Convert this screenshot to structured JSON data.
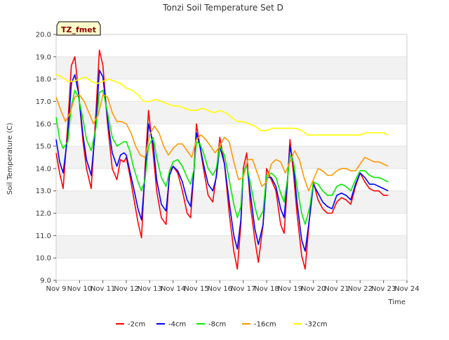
{
  "chart_data": {
    "type": "line",
    "title": "Tonzi Soil Temperature Set D",
    "xlabel": "Time",
    "ylabel": "Soil Temperature (C)",
    "ylim": [
      9.0,
      20.0
    ],
    "yticks": [
      "9.0",
      "10.0",
      "11.0",
      "12.0",
      "13.0",
      "14.0",
      "15.0",
      "16.0",
      "17.0",
      "18.0",
      "19.0",
      "20.0"
    ],
    "xlim": [
      9,
      24
    ],
    "xticks": [
      "Nov 9",
      "Nov 10",
      "Nov 11",
      "Nov 12",
      "Nov 13",
      "Nov 14",
      "Nov 15",
      "Nov 16",
      "Nov 17",
      "Nov 18",
      "Nov 19",
      "Nov 20",
      "Nov 21",
      "Nov 22",
      "Nov 23",
      "Nov 24"
    ],
    "badge": "TZ_fmet",
    "legend_position": "bottom-center",
    "background_bands": true,
    "series": [
      {
        "name": "-2cm",
        "color": "#ff0000",
        "x": [
          9.0,
          9.15,
          9.3,
          9.5,
          9.65,
          9.8,
          9.95,
          10.15,
          10.3,
          10.5,
          10.7,
          10.85,
          11.0,
          11.2,
          11.4,
          11.6,
          11.75,
          11.9,
          12.0,
          12.15,
          12.3,
          12.5,
          12.65,
          12.8,
          12.95,
          13.15,
          13.3,
          13.5,
          13.7,
          13.85,
          14.0,
          14.2,
          14.4,
          14.6,
          14.75,
          14.9,
          15.0,
          15.15,
          15.3,
          15.5,
          15.7,
          15.85,
          16.0,
          16.2,
          16.4,
          16.6,
          16.75,
          16.9,
          17.0,
          17.15,
          17.3,
          17.5,
          17.65,
          17.85,
          18.0,
          18.2,
          18.4,
          18.6,
          18.75,
          18.9,
          19.0,
          19.15,
          19.3,
          19.5,
          19.65,
          19.85,
          20.0,
          20.2,
          20.4,
          20.6,
          20.8,
          21.0,
          21.2,
          21.4,
          21.6,
          21.8,
          22.0,
          22.2,
          22.4,
          22.6,
          22.8,
          23.0,
          23.2
        ],
        "y": [
          14.7,
          13.8,
          13.1,
          16.0,
          18.6,
          19.0,
          17.5,
          15.2,
          14.0,
          13.1,
          16.5,
          19.3,
          18.6,
          16.0,
          14.0,
          13.5,
          14.4,
          14.3,
          14.5,
          13.7,
          12.8,
          11.6,
          10.9,
          14.0,
          16.6,
          14.7,
          13.0,
          11.8,
          11.5,
          13.9,
          14.1,
          13.8,
          13.0,
          12.0,
          11.8,
          14.0,
          16.0,
          15.0,
          14.0,
          12.8,
          12.5,
          13.7,
          15.4,
          14.2,
          12.0,
          10.3,
          9.5,
          11.5,
          14.0,
          14.7,
          12.4,
          10.8,
          9.8,
          11.5,
          14.0,
          13.5,
          13.0,
          11.5,
          11.1,
          13.5,
          15.3,
          13.8,
          12.0,
          10.1,
          9.5,
          12.0,
          13.4,
          12.6,
          12.2,
          12.0,
          12.0,
          12.5,
          12.7,
          12.6,
          12.4,
          13.2,
          13.8,
          13.4,
          13.1,
          13.0,
          13.0,
          12.8,
          12.8
        ]
      },
      {
        "name": "-4cm",
        "color": "#0000ff",
        "x": [
          9.0,
          9.15,
          9.3,
          9.5,
          9.65,
          9.8,
          9.95,
          10.15,
          10.3,
          10.5,
          10.7,
          10.85,
          11.0,
          11.2,
          11.4,
          11.6,
          11.75,
          11.9,
          12.0,
          12.15,
          12.3,
          12.5,
          12.65,
          12.8,
          12.95,
          13.15,
          13.3,
          13.5,
          13.7,
          13.85,
          14.0,
          14.2,
          14.4,
          14.6,
          14.75,
          14.9,
          15.0,
          15.15,
          15.3,
          15.5,
          15.7,
          15.85,
          16.0,
          16.2,
          16.4,
          16.6,
          16.75,
          16.9,
          17.0,
          17.15,
          17.3,
          17.5,
          17.65,
          17.85,
          18.0,
          18.2,
          18.4,
          18.6,
          18.75,
          18.9,
          19.0,
          19.15,
          19.3,
          19.5,
          19.65,
          19.85,
          20.0,
          20.2,
          20.4,
          20.6,
          20.8,
          21.0,
          21.2,
          21.4,
          21.6,
          21.8,
          22.0,
          22.2,
          22.4,
          22.6,
          22.8,
          23.0,
          23.2
        ],
        "y": [
          15.3,
          14.3,
          13.8,
          15.5,
          17.8,
          18.2,
          17.4,
          15.5,
          14.4,
          13.7,
          16.0,
          18.4,
          18.1,
          16.2,
          14.7,
          14.1,
          14.6,
          14.7,
          14.6,
          13.9,
          13.2,
          12.2,
          11.7,
          13.7,
          16.0,
          15.1,
          13.5,
          12.4,
          12.1,
          13.7,
          14.1,
          13.9,
          13.4,
          12.6,
          12.3,
          14.0,
          15.6,
          15.0,
          14.2,
          13.3,
          13.0,
          13.6,
          15.0,
          14.2,
          12.5,
          11.0,
          10.4,
          11.7,
          13.8,
          14.2,
          12.9,
          11.3,
          10.6,
          11.5,
          13.6,
          13.6,
          13.2,
          12.2,
          11.8,
          13.6,
          15.0,
          14.2,
          12.5,
          10.8,
          10.3,
          11.9,
          13.3,
          12.9,
          12.5,
          12.3,
          12.2,
          12.8,
          12.9,
          12.8,
          12.6,
          13.3,
          13.8,
          13.6,
          13.3,
          13.3,
          13.2,
          13.1,
          13.0
        ]
      },
      {
        "name": "-8cm",
        "color": "#00ee00",
        "x": [
          9.0,
          9.15,
          9.3,
          9.5,
          9.65,
          9.8,
          9.95,
          10.15,
          10.3,
          10.5,
          10.7,
          10.85,
          11.0,
          11.2,
          11.4,
          11.6,
          11.75,
          11.9,
          12.0,
          12.15,
          12.3,
          12.5,
          12.65,
          12.8,
          12.95,
          13.15,
          13.3,
          13.5,
          13.7,
          13.85,
          14.0,
          14.2,
          14.4,
          14.6,
          14.75,
          14.9,
          15.0,
          15.15,
          15.3,
          15.5,
          15.7,
          15.85,
          16.0,
          16.2,
          16.4,
          16.6,
          16.75,
          16.9,
          17.0,
          17.15,
          17.3,
          17.5,
          17.65,
          17.85,
          18.0,
          18.2,
          18.4,
          18.6,
          18.75,
          18.9,
          19.0,
          19.15,
          19.3,
          19.5,
          19.65,
          19.85,
          20.0,
          20.2,
          20.4,
          20.6,
          20.8,
          21.0,
          21.2,
          21.4,
          21.6,
          21.8,
          22.0,
          22.2,
          22.4,
          22.6,
          22.8,
          23.0,
          23.2
        ],
        "y": [
          16.3,
          15.3,
          14.9,
          15.2,
          16.8,
          17.5,
          17.2,
          16.2,
          15.3,
          14.8,
          15.8,
          17.4,
          17.5,
          16.5,
          15.4,
          15.0,
          15.1,
          15.2,
          15.2,
          14.8,
          14.1,
          13.4,
          13.0,
          13.5,
          15.0,
          15.4,
          14.5,
          13.6,
          13.2,
          13.9,
          14.3,
          14.4,
          14.1,
          13.6,
          13.3,
          14.0,
          15.2,
          15.1,
          14.7,
          14.0,
          13.7,
          14.0,
          15.0,
          14.6,
          13.5,
          12.4,
          11.8,
          12.3,
          13.9,
          14.1,
          13.4,
          12.3,
          11.7,
          12.1,
          13.7,
          13.8,
          13.6,
          12.9,
          12.5,
          13.6,
          14.6,
          14.3,
          13.2,
          12.0,
          11.5,
          12.3,
          13.4,
          13.3,
          13.0,
          12.8,
          12.8,
          13.2,
          13.3,
          13.2,
          13.0,
          13.5,
          13.9,
          13.9,
          13.7,
          13.6,
          13.6,
          13.5,
          13.4
        ]
      },
      {
        "name": "-16cm",
        "color": "#ff9900",
        "x": [
          9.0,
          9.2,
          9.4,
          9.6,
          9.8,
          10.0,
          10.2,
          10.4,
          10.6,
          10.8,
          11.0,
          11.2,
          11.4,
          11.6,
          11.8,
          12.0,
          12.2,
          12.4,
          12.6,
          12.8,
          13.0,
          13.2,
          13.4,
          13.6,
          13.8,
          14.0,
          14.2,
          14.4,
          14.6,
          14.8,
          15.0,
          15.2,
          15.4,
          15.6,
          15.8,
          16.0,
          16.2,
          16.4,
          16.6,
          16.8,
          17.0,
          17.2,
          17.4,
          17.6,
          17.8,
          18.0,
          18.2,
          18.4,
          18.6,
          18.8,
          19.0,
          19.2,
          19.4,
          19.6,
          19.8,
          20.0,
          20.2,
          20.4,
          20.6,
          20.8,
          21.0,
          21.2,
          21.4,
          21.6,
          21.8,
          22.0,
          22.2,
          22.4,
          22.6,
          22.8,
          23.0,
          23.2
        ],
        "y": [
          17.2,
          16.6,
          16.1,
          16.5,
          17.2,
          17.3,
          17.0,
          16.5,
          16.0,
          16.4,
          17.3,
          17.2,
          16.5,
          16.1,
          16.1,
          16.0,
          15.6,
          15.0,
          14.6,
          14.5,
          15.5,
          15.9,
          15.6,
          15.0,
          14.6,
          14.9,
          15.1,
          15.1,
          14.8,
          14.5,
          15.3,
          15.5,
          15.3,
          15.0,
          14.7,
          15.0,
          15.4,
          15.2,
          14.3,
          13.5,
          13.6,
          14.4,
          14.4,
          13.8,
          13.2,
          13.4,
          14.2,
          14.4,
          14.3,
          13.8,
          14.3,
          14.8,
          14.4,
          13.6,
          13.0,
          13.5,
          14.0,
          13.9,
          13.7,
          13.7,
          13.9,
          14.0,
          14.0,
          13.9,
          13.9,
          14.2,
          14.5,
          14.4,
          14.3,
          14.3,
          14.2,
          14.1
        ]
      },
      {
        "name": "-32cm",
        "color": "#ffff00",
        "x": [
          9.0,
          9.25,
          9.5,
          9.75,
          10.0,
          10.25,
          10.5,
          10.75,
          11.0,
          11.25,
          11.5,
          11.75,
          12.0,
          12.25,
          12.5,
          12.75,
          13.0,
          13.25,
          13.5,
          13.75,
          14.0,
          14.25,
          14.5,
          14.75,
          15.0,
          15.25,
          15.5,
          15.75,
          16.0,
          16.25,
          16.5,
          16.75,
          17.0,
          17.25,
          17.5,
          17.75,
          18.0,
          18.25,
          18.5,
          18.75,
          19.0,
          19.25,
          19.5,
          19.75,
          20.0,
          20.25,
          20.5,
          20.75,
          21.0,
          21.25,
          21.5,
          21.75,
          22.0,
          22.25,
          22.5,
          22.75,
          23.0,
          23.2
        ],
        "y": [
          18.2,
          18.1,
          17.9,
          17.9,
          18.0,
          18.1,
          17.9,
          17.8,
          17.9,
          18.0,
          17.9,
          17.8,
          17.6,
          17.5,
          17.3,
          17.0,
          17.0,
          17.1,
          17.0,
          16.9,
          16.8,
          16.8,
          16.7,
          16.6,
          16.6,
          16.7,
          16.6,
          16.5,
          16.6,
          16.5,
          16.3,
          16.1,
          16.1,
          16.0,
          15.9,
          15.7,
          15.7,
          15.8,
          15.8,
          15.8,
          15.8,
          15.8,
          15.7,
          15.5,
          15.5,
          15.5,
          15.5,
          15.5,
          15.5,
          15.5,
          15.5,
          15.5,
          15.5,
          15.6,
          15.6,
          15.6,
          15.6,
          15.5
        ]
      }
    ]
  }
}
